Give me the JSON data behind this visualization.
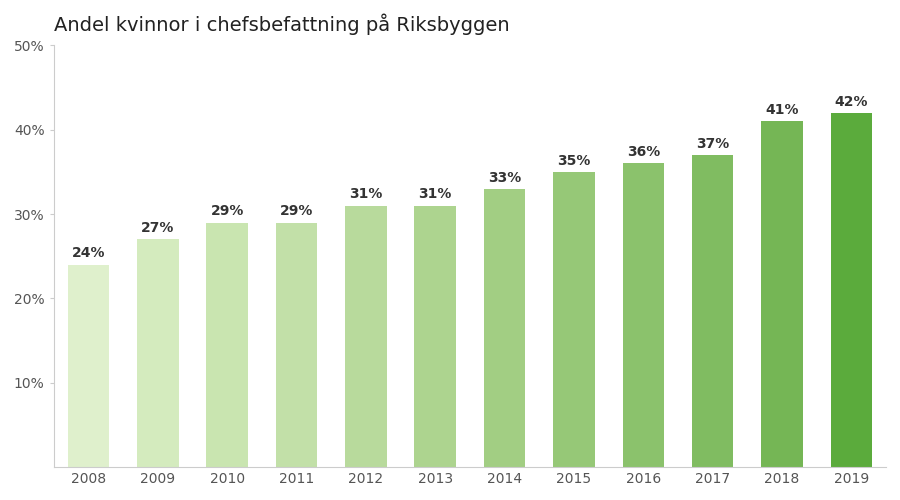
{
  "title": "Andel kvinnor i chefsbefattning på Riksbyggen",
  "years": [
    2008,
    2009,
    2010,
    2011,
    2012,
    2013,
    2014,
    2015,
    2016,
    2017,
    2018,
    2019
  ],
  "values": [
    24,
    27,
    29,
    29,
    31,
    31,
    33,
    35,
    36,
    37,
    41,
    42
  ],
  "bar_colors": [
    "#dff0cc",
    "#d4ebbe",
    "#c9e5b0",
    "#c2e0a8",
    "#b8da9c",
    "#add48f",
    "#a2ce83",
    "#96c877",
    "#8bc26c",
    "#80bc61",
    "#75b655",
    "#5bab3c"
  ],
  "ylim": [
    0,
    50
  ],
  "yticks": [
    10,
    20,
    30,
    40,
    50
  ],
  "ytick_labels": [
    "10%",
    "20%",
    "30%",
    "40%",
    "50%"
  ],
  "title_fontsize": 14,
  "label_fontsize": 10,
  "tick_fontsize": 10,
  "background_color": "#ffffff",
  "bar_width": 0.6,
  "spine_color": "#cccccc",
  "label_color": "#333333"
}
